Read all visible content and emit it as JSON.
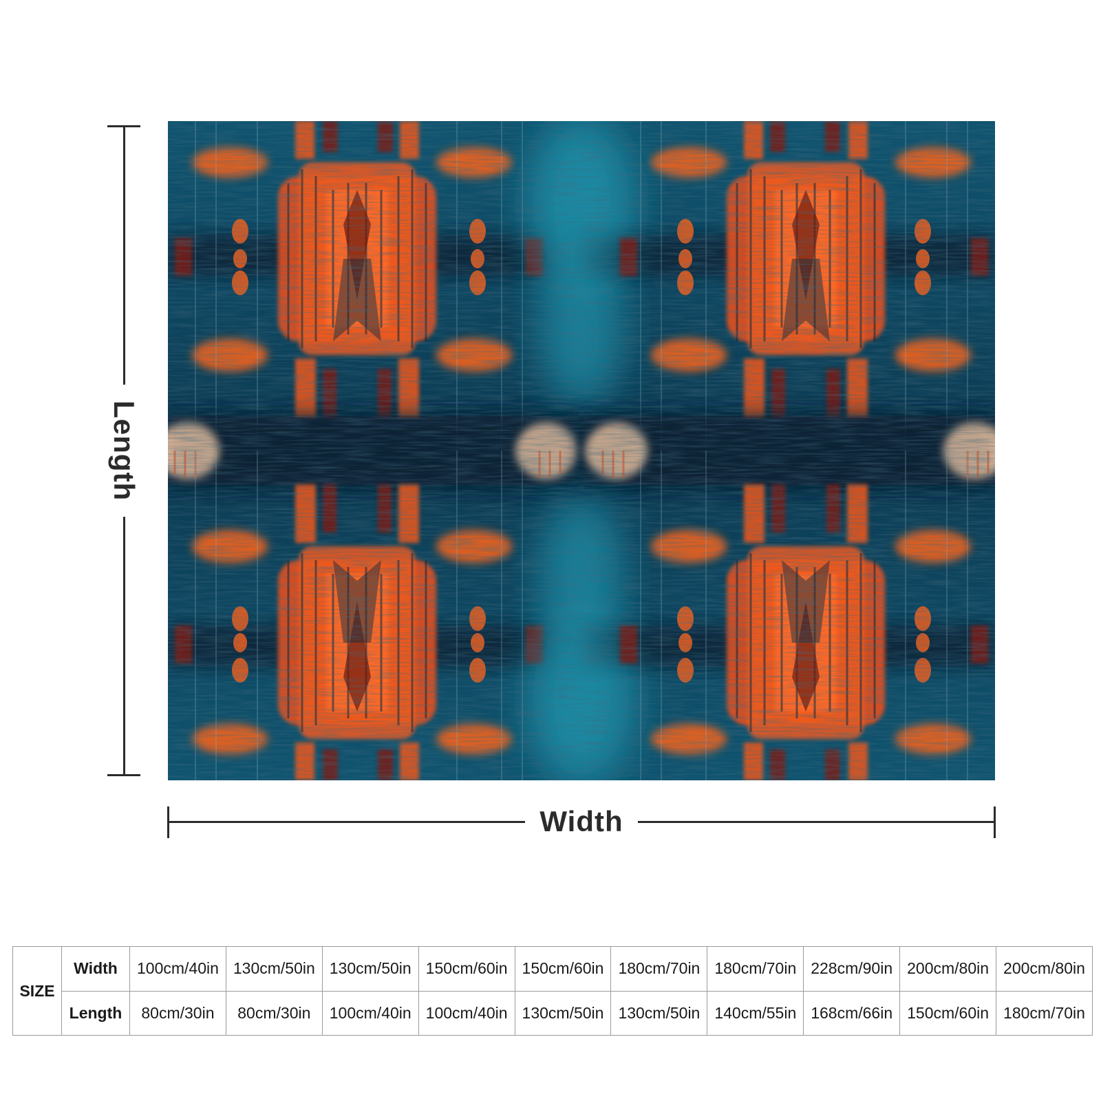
{
  "dimension_labels": {
    "length": "Length",
    "width": "Width"
  },
  "artwork": {
    "description_colors": {
      "background_teal": "#0e4a63",
      "deep_navy": "#0c2436",
      "bright_teal": "#1f8fa8",
      "orange": "#f25a1f",
      "dark_red": "#7a1e12",
      "cream": "#f4c9a6"
    }
  },
  "size_table": {
    "size_label": "SIZE",
    "width_label": "Width",
    "length_label": "Length",
    "widths": [
      "100cm/40in",
      "130cm/50in",
      "130cm/50in",
      "150cm/60in",
      "150cm/60in",
      "180cm/70in",
      "180cm/70in",
      "228cm/90in",
      "200cm/80in",
      "200cm/80in"
    ],
    "lengths": [
      "80cm/30in",
      "80cm/30in",
      "100cm/40in",
      "100cm/40in",
      "130cm/50in",
      "130cm/50in",
      "140cm/55in",
      "168cm/66in",
      "150cm/60in",
      "180cm/70in"
    ]
  }
}
